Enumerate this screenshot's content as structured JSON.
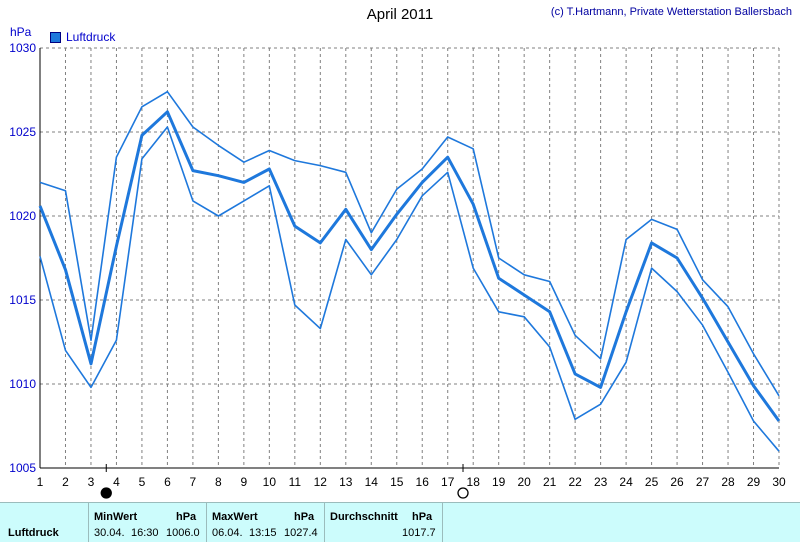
{
  "header": {
    "title": "April 2011",
    "credit": "(c) T.Hartmann, Private Wetterstation Ballersbach",
    "unit": "hPa",
    "legend_label": "Luftdruck"
  },
  "colors": {
    "line": "#1e78dc",
    "grid": "#808080"
  },
  "chart_data": {
    "type": "line",
    "title": "April 2011",
    "ylabel": "hPa",
    "ylim": [
      1005,
      1030
    ],
    "yticks": [
      1005,
      1010,
      1015,
      1020,
      1025,
      1030
    ],
    "xlim": [
      1,
      30
    ],
    "x": [
      1,
      2,
      3,
      4,
      5,
      6,
      7,
      8,
      9,
      10,
      11,
      12,
      13,
      14,
      15,
      16,
      17,
      18,
      19,
      20,
      21,
      22,
      23,
      24,
      25,
      26,
      27,
      28,
      29,
      30
    ],
    "xticks": [
      "1",
      "2",
      "3",
      "4",
      "5",
      "6",
      "7",
      "8",
      "9",
      "10",
      "11",
      "12",
      "13",
      "14",
      "15",
      "16",
      "17",
      "18",
      "19",
      "20",
      "21",
      "22",
      "23",
      "24",
      "25",
      "26",
      "27",
      "28",
      "29",
      "30"
    ],
    "grid": true,
    "legend": "top-left",
    "series": [
      {
        "name": "Luftdruck",
        "values": [
          1020.6,
          1016.8,
          1011.2,
          1018.2,
          1024.8,
          1026.2,
          1022.7,
          1022.4,
          1022.0,
          1022.8,
          1019.4,
          1018.4,
          1020.4,
          1018.0,
          1020.1,
          1022.0,
          1023.5,
          1020.7,
          1016.3,
          1015.3,
          1014.3,
          1010.6,
          1009.8,
          1014.3,
          1018.4,
          1017.5,
          1015.1,
          1012.5,
          1009.9,
          1007.8
        ]
      },
      {
        "name": "Luftdruck max",
        "values": [
          1022.0,
          1021.5,
          1012.6,
          1023.5,
          1026.5,
          1027.4,
          1025.3,
          1024.2,
          1023.2,
          1023.9,
          1023.3,
          1023.0,
          1022.6,
          1019.0,
          1021.6,
          1022.8,
          1024.7,
          1024.0,
          1017.5,
          1016.5,
          1016.1,
          1012.9,
          1011.5,
          1018.6,
          1019.8,
          1019.2,
          1016.2,
          1014.6,
          1011.8,
          1009.3
        ]
      },
      {
        "name": "Luftdruck min",
        "values": [
          1017.6,
          1012.0,
          1009.8,
          1012.6,
          1023.4,
          1025.3,
          1020.9,
          1020.0,
          1020.9,
          1021.8,
          1014.7,
          1013.3,
          1018.6,
          1016.5,
          1018.6,
          1021.2,
          1022.6,
          1016.9,
          1014.3,
          1014.0,
          1012.2,
          1007.9,
          1008.8,
          1011.3,
          1016.9,
          1015.5,
          1013.5,
          1010.7,
          1007.8,
          1006.0
        ]
      }
    ],
    "markers": [
      {
        "symbol": "new-moon",
        "x": 3.6
      },
      {
        "symbol": "full-moon",
        "x": 17.6
      }
    ]
  },
  "stats": {
    "row_label": "Luftdruck",
    "min": {
      "label": "MinWert",
      "unit": "hPa",
      "date": "30.04.",
      "time": "16:30",
      "value": "1006.0"
    },
    "max": {
      "label": "MaxWert",
      "unit": "hPa",
      "date": "06.04.",
      "time": "13:15",
      "value": "1027.4"
    },
    "avg": {
      "label": "Durchschnitt",
      "unit": "hPa",
      "value": "1017.7"
    }
  }
}
